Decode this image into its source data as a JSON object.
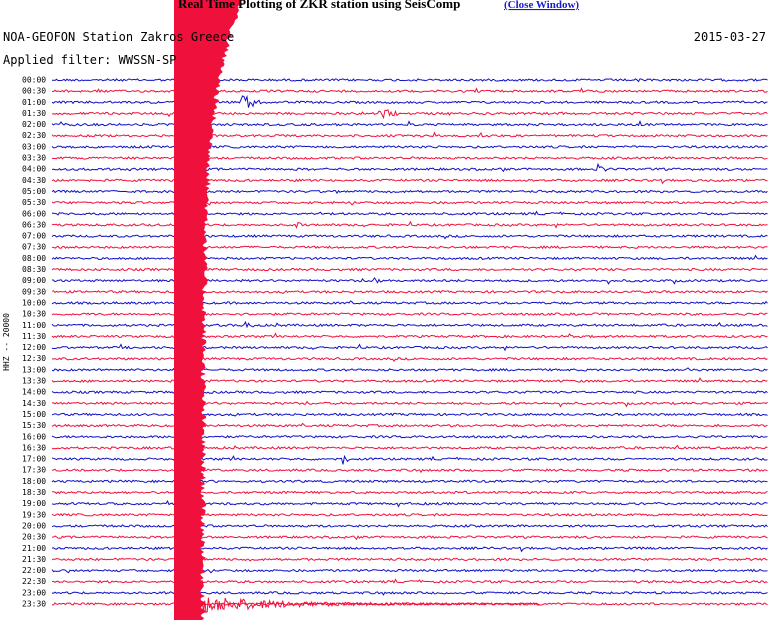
{
  "header": {
    "title": "Real Time Plotting of ZKR station using SeisComp",
    "link": "(Close Window)"
  },
  "plot": {
    "station": "NOA-GEOFON Station Zakros Greece",
    "date": "2015-03-27",
    "filter": "Applied filter: WWSSN-SP",
    "channel": "HHZ -- 20000",
    "colors": [
      "#1010c8",
      "#f0103c"
    ],
    "rows": [
      "00:00",
      "00:30",
      "01:00",
      "01:30",
      "02:00",
      "02:30",
      "03:00",
      "03:30",
      "04:00",
      "04:30",
      "05:00",
      "05:30",
      "06:00",
      "06:30",
      "07:00",
      "07:30",
      "08:00",
      "08:30",
      "09:00",
      "09:30",
      "10:00",
      "10:30",
      "11:00",
      "11:30",
      "12:00",
      "12:30",
      "13:00",
      "13:30",
      "14:00",
      "14:30",
      "15:00",
      "15:30",
      "16:00",
      "16:30",
      "17:00",
      "17:30",
      "18:00",
      "18:30",
      "19:00",
      "19:30",
      "20:00",
      "20:30",
      "21:00",
      "21:30",
      "22:00",
      "22:30",
      "23:00",
      "23:30"
    ]
  }
}
